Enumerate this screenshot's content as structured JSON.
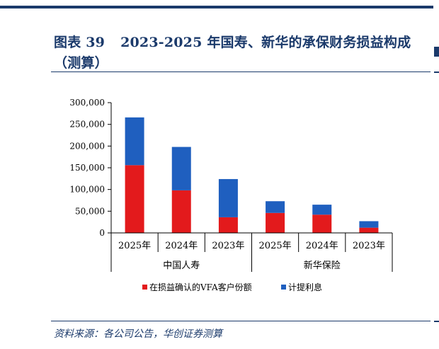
{
  "header": {
    "figure_label": "图表 39",
    "title": "2023-2025 年国寿、新华的承保财务损益构成（测算）"
  },
  "chart_data": {
    "type": "bar",
    "stacked": true,
    "categories": [
      "2025年",
      "2024年",
      "2023年",
      "2025年",
      "2024年",
      "2023年"
    ],
    "groups": [
      {
        "label": "中国人寿",
        "span": 3
      },
      {
        "label": "新华保险",
        "span": 3
      }
    ],
    "series": [
      {
        "name": "在损益确认的VFA客户份额",
        "color": "#e31a1c",
        "values": [
          156000,
          98000,
          36000,
          46000,
          42000,
          12000
        ]
      },
      {
        "name": "计提利息",
        "color": "#1f5fbf",
        "values": [
          110000,
          100000,
          88000,
          27000,
          23000,
          15000
        ]
      }
    ],
    "ylim": [
      0,
      300000
    ],
    "yticks": [
      "0",
      "50,000",
      "100,000",
      "150,000",
      "200,000",
      "250,000",
      "300,000"
    ],
    "ytick_values": [
      0,
      50000,
      100000,
      150000,
      200000,
      250000,
      300000
    ],
    "legend_position": "bottom",
    "grid": false
  },
  "source": "资料来源：各公司公告，华创证券测算"
}
